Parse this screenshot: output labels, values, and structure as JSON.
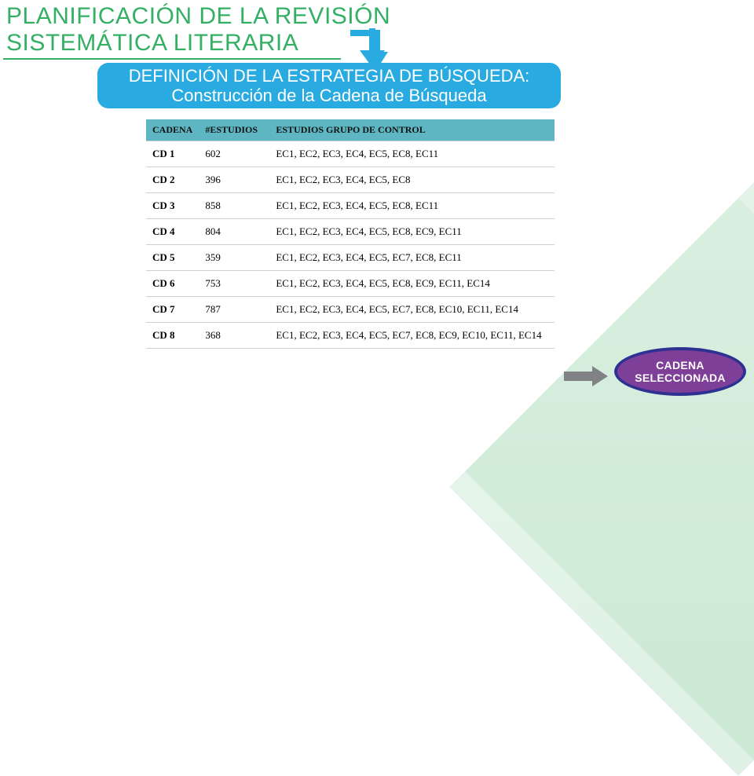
{
  "title": {
    "line1": "PLANIFICACIÓN DE LA REVISIÓN",
    "line2": "SISTEMÁTICA LITERARIA",
    "color": "#33b064"
  },
  "subtitle": {
    "line1": "DEFINICIÓN DE LA ESTRATEGIA DE BÚSQUEDA:",
    "line2": "Construcción de la Cadena de Búsqueda",
    "bg": "#29abe2"
  },
  "table": {
    "header_bg": "#5eb6c3",
    "columns": [
      "CADENA",
      "#ESTUDIOS",
      "ESTUDIOS GRUPO DE CONTROL"
    ],
    "rows": [
      [
        "CD 1",
        "602",
        "EC1, EC2, EC3, EC4, EC5, EC8, EC11"
      ],
      [
        "CD 2",
        "396",
        "EC1, EC2, EC3, EC4, EC5, EC8"
      ],
      [
        "CD 3",
        "858",
        "EC1, EC2, EC3, EC4, EC5, EC8, EC11"
      ],
      [
        "CD 4",
        "804",
        "EC1, EC2, EC3, EC4, EC5, EC8, EC9, EC11"
      ],
      [
        "CD 5",
        "359",
        "EC1, EC2, EC3, EC4, EC5, EC7, EC8, EC11"
      ],
      [
        "CD 6",
        "753",
        "EC1, EC2, EC3, EC4, EC5, EC8, EC9, EC11, EC14"
      ],
      [
        "CD 7",
        "787",
        "EC1, EC2, EC3, EC4, EC5, EC7, EC8, EC10, EC11, EC14"
      ],
      [
        "CD 8",
        "368",
        "EC1, EC2, EC3, EC4, EC5, EC7, EC8, EC9, EC10, EC11, EC14"
      ]
    ]
  },
  "badge": {
    "line1": "CADENA",
    "line2": "SELECCIONADA",
    "bg": "#7e3f98",
    "border": "#2e3192"
  },
  "arrows": {
    "down_color": "#29abe2",
    "right_color": "#808285"
  },
  "decor": {
    "corner_color": "#8fcf9f"
  }
}
